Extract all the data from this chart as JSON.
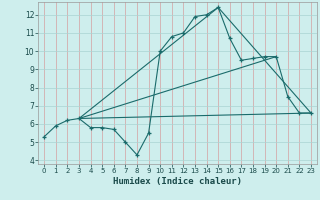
{
  "xlabel": "Humidex (Indice chaleur)",
  "bg_color": "#ceeeed",
  "grid_color": "#aad4d3",
  "line_color": "#1a6b6b",
  "xlim": [
    -0.5,
    23.5
  ],
  "ylim": [
    3.8,
    12.7
  ],
  "yticks": [
    4,
    5,
    6,
    7,
    8,
    9,
    10,
    11,
    12
  ],
  "xticks": [
    0,
    1,
    2,
    3,
    4,
    5,
    6,
    7,
    8,
    9,
    10,
    11,
    12,
    13,
    14,
    15,
    16,
    17,
    18,
    19,
    20,
    21,
    22,
    23
  ],
  "xtick_labels": [
    "0",
    "1",
    "2",
    "3",
    "4",
    "5",
    "6",
    "7",
    "8",
    "9",
    "10",
    "11",
    "12",
    "13",
    "14",
    "15",
    "16",
    "17",
    "18",
    "19",
    "20",
    "21",
    "22",
    "23"
  ],
  "series1_x": [
    0,
    1,
    2,
    3,
    4,
    5,
    6,
    7,
    8,
    9,
    10,
    11,
    12,
    13,
    14,
    15,
    16,
    17,
    18,
    19,
    20,
    21,
    22,
    23
  ],
  "series1_y": [
    5.3,
    5.9,
    6.2,
    6.3,
    5.8,
    5.8,
    5.7,
    5.0,
    4.3,
    5.5,
    10.0,
    10.8,
    11.0,
    11.9,
    12.0,
    12.4,
    10.7,
    9.5,
    9.6,
    9.7,
    9.7,
    7.5,
    6.6,
    6.6
  ],
  "series2_x": [
    3,
    15,
    23
  ],
  "series2_y": [
    6.3,
    12.4,
    6.6
  ],
  "series3_x": [
    3,
    23
  ],
  "series3_y": [
    6.3,
    6.6
  ],
  "series4_x": [
    3,
    20
  ],
  "series4_y": [
    6.3,
    9.7
  ]
}
